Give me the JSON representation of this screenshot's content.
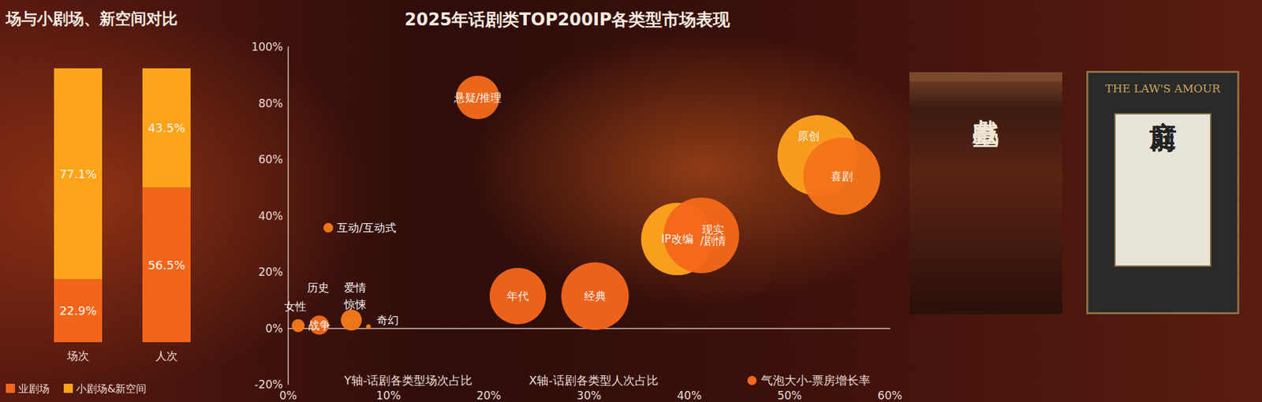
{
  "chart_data": [
    {
      "type": "bar",
      "title": "场与小剧场、新空间对比",
      "categories": [
        "场次",
        "人次"
      ],
      "stacked": true,
      "data_labels": true,
      "tick_labels": "x",
      "legend": "bottom",
      "ylim": [
        0,
        100
      ],
      "series": [
        {
          "name": "业剧场",
          "color": "#f2661c",
          "values": [
            22.9,
            56.5
          ],
          "value_labels": [
            "22.9%",
            "56.5%"
          ]
        },
        {
          "name": "小剧场&新空间",
          "color": "#ffa31a",
          "values": [
            77.1,
            43.5
          ],
          "value_labels": [
            "77.1%",
            "43.5%"
          ]
        }
      ]
    },
    {
      "type": "scatter",
      "title": "2025年话剧类TOP200IP各类型市场表现",
      "x_label": "X轴-话剧各类型人次占比",
      "y_label": "Y轴-话剧各类型场次占比",
      "size_label": "气泡大小-票房增长率",
      "legend": "bottom",
      "grid": false,
      "data_labels": true,
      "names": [
        "悬疑/推理",
        "原创",
        "喜剧",
        "IP改编",
        "现实/剧情",
        "经典",
        "年代",
        "互动/互动式",
        "历史",
        "爱情",
        "女性",
        "战争",
        "惊悚",
        "奇幻"
      ],
      "x": [
        18.9,
        52.8,
        55.2,
        38.8,
        41.2,
        30.6,
        22.9,
        4.0,
        3.5,
        6.0,
        1.0,
        3.1,
        6.3,
        8.0
      ],
      "y": [
        82,
        61.4,
        54,
        31.7,
        33,
        11.4,
        11.4,
        35.7,
        2,
        3,
        0.9,
        1.1,
        2.9,
        0.5
      ],
      "size": [
        27,
        50,
        48,
        45,
        47,
        42,
        35,
        6,
        4,
        4,
        8,
        12,
        13,
        3
      ],
      "colors": [
        "#f26a1a",
        "#ffa01e",
        "#f4721a",
        "#ffa31e",
        "#f4681a",
        "#f2661c",
        "#f2661c",
        "#f47a1a",
        "#f47a1a",
        "#f47a1a",
        "#f47a1a",
        "#f26a1a",
        "#f47a1a",
        "#f47a1a"
      ],
      "xlim": [
        0,
        60
      ],
      "xticks": [
        {
          "value": 0,
          "label": "0%"
        },
        {
          "value": 10,
          "label": "10%"
        },
        {
          "value": 20,
          "label": "20%"
        },
        {
          "value": 30,
          "label": "30%"
        },
        {
          "value": 40,
          "label": "40%"
        },
        {
          "value": 50,
          "label": "50%"
        },
        {
          "value": 60,
          "label": "60%"
        }
      ],
      "ylim": [
        -20,
        100
      ],
      "yticks": [
        {
          "value": -20,
          "label": "-20%"
        },
        {
          "value": 0,
          "label": "0%"
        },
        {
          "value": 20,
          "label": "20%"
        },
        {
          "value": 40,
          "label": "40%"
        },
        {
          "value": 60,
          "label": "60%"
        },
        {
          "value": 80,
          "label": "80%"
        },
        {
          "value": 100,
          "label": "100%"
        }
      ]
    }
  ],
  "posters": [
    {
      "title": "戲臺"
    },
    {
      "title": "庭前",
      "subtitle": "THE LAW'S AMOUR"
    }
  ]
}
